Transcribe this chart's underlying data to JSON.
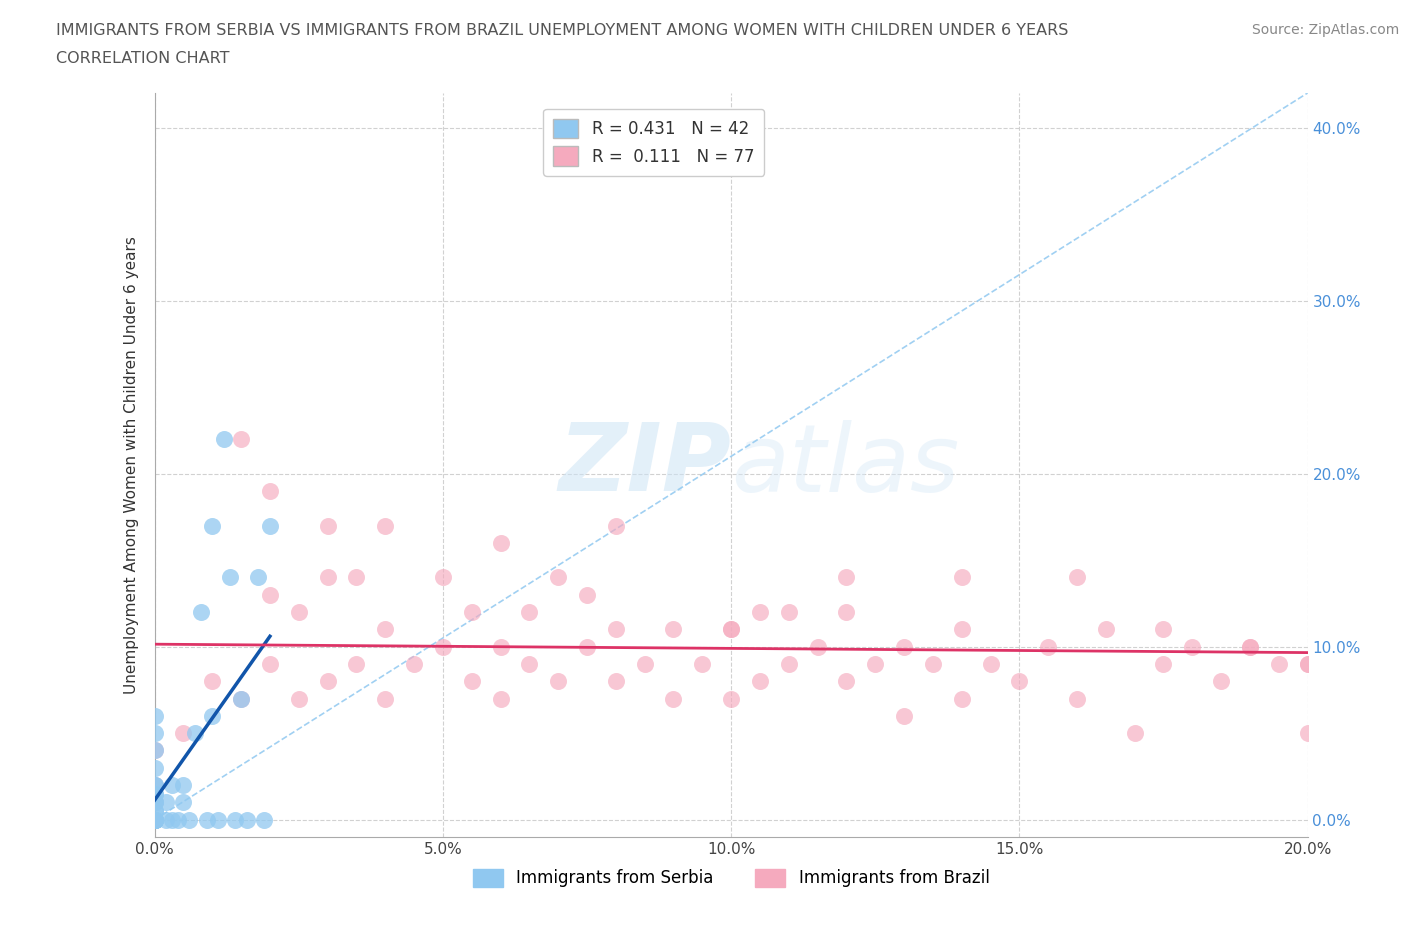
{
  "title_line1": "IMMIGRANTS FROM SERBIA VS IMMIGRANTS FROM BRAZIL UNEMPLOYMENT AMONG WOMEN WITH CHILDREN UNDER 6 YEARS",
  "title_line2": "CORRELATION CHART",
  "source": "Source: ZipAtlas.com",
  "ylabel": "Unemployment Among Women with Children Under 6 years",
  "xlim": [
    0.0,
    0.2
  ],
  "ylim": [
    -0.01,
    0.42
  ],
  "xticks": [
    0.0,
    0.05,
    0.1,
    0.15,
    0.2
  ],
  "yticks": [
    0.0,
    0.1,
    0.2,
    0.3,
    0.4
  ],
  "serbia_R": "0.431",
  "serbia_N": "42",
  "brazil_R": "0.111",
  "brazil_N": "77",
  "serbia_color": "#90c8f0",
  "brazil_color": "#f5aabe",
  "serbia_trend_color": "#1155aa",
  "brazil_trend_color": "#dd3366",
  "diag_color": "#90c8f0",
  "watermark_zip": "ZIP",
  "watermark_atlas": "atlas",
  "serbia_x": [
    0.0,
    0.0,
    0.0,
    0.0,
    0.0,
    0.0,
    0.0,
    0.0,
    0.0,
    0.0,
    0.0,
    0.0,
    0.0,
    0.0,
    0.0,
    0.0,
    0.0,
    0.0,
    0.0,
    0.0,
    0.002,
    0.002,
    0.003,
    0.003,
    0.004,
    0.005,
    0.005,
    0.006,
    0.007,
    0.008,
    0.009,
    0.01,
    0.01,
    0.011,
    0.012,
    0.013,
    0.014,
    0.015,
    0.016,
    0.018,
    0.019,
    0.02
  ],
  "serbia_y": [
    0.0,
    0.0,
    0.0,
    0.0,
    0.0,
    0.0,
    0.0,
    0.0,
    0.005,
    0.005,
    0.01,
    0.01,
    0.015,
    0.015,
    0.02,
    0.02,
    0.03,
    0.04,
    0.05,
    0.06,
    0.0,
    0.01,
    0.0,
    0.02,
    0.0,
    0.01,
    0.02,
    0.0,
    0.05,
    0.12,
    0.0,
    0.06,
    0.17,
    0.0,
    0.22,
    0.14,
    0.0,
    0.07,
    0.0,
    0.14,
    0.0,
    0.17
  ],
  "brazil_x": [
    0.005,
    0.01,
    0.015,
    0.02,
    0.02,
    0.025,
    0.025,
    0.03,
    0.03,
    0.035,
    0.035,
    0.04,
    0.04,
    0.045,
    0.05,
    0.05,
    0.055,
    0.055,
    0.06,
    0.06,
    0.065,
    0.065,
    0.07,
    0.07,
    0.075,
    0.075,
    0.08,
    0.08,
    0.085,
    0.09,
    0.09,
    0.095,
    0.1,
    0.1,
    0.105,
    0.105,
    0.11,
    0.11,
    0.115,
    0.12,
    0.12,
    0.125,
    0.13,
    0.13,
    0.135,
    0.14,
    0.14,
    0.145,
    0.15,
    0.155,
    0.16,
    0.165,
    0.17,
    0.175,
    0.18,
    0.185,
    0.19,
    0.195,
    0.2,
    0.2,
    0.015,
    0.02,
    0.03,
    0.04,
    0.06,
    0.08,
    0.1,
    0.12,
    0.14,
    0.16,
    0.175,
    0.19,
    0.2,
    0.0,
    0.0,
    0.0,
    0.0
  ],
  "brazil_y": [
    0.05,
    0.08,
    0.07,
    0.09,
    0.13,
    0.07,
    0.12,
    0.08,
    0.14,
    0.09,
    0.14,
    0.07,
    0.11,
    0.09,
    0.1,
    0.14,
    0.08,
    0.12,
    0.07,
    0.1,
    0.09,
    0.12,
    0.08,
    0.14,
    0.1,
    0.13,
    0.08,
    0.11,
    0.09,
    0.07,
    0.11,
    0.09,
    0.07,
    0.11,
    0.08,
    0.12,
    0.09,
    0.12,
    0.1,
    0.08,
    0.12,
    0.09,
    0.06,
    0.1,
    0.09,
    0.07,
    0.11,
    0.09,
    0.08,
    0.1,
    0.07,
    0.11,
    0.05,
    0.09,
    0.1,
    0.08,
    0.1,
    0.09,
    0.05,
    0.09,
    0.22,
    0.19,
    0.17,
    0.17,
    0.16,
    0.17,
    0.11,
    0.14,
    0.14,
    0.14,
    0.11,
    0.1,
    0.09,
    0.0,
    0.01,
    0.02,
    0.04
  ]
}
